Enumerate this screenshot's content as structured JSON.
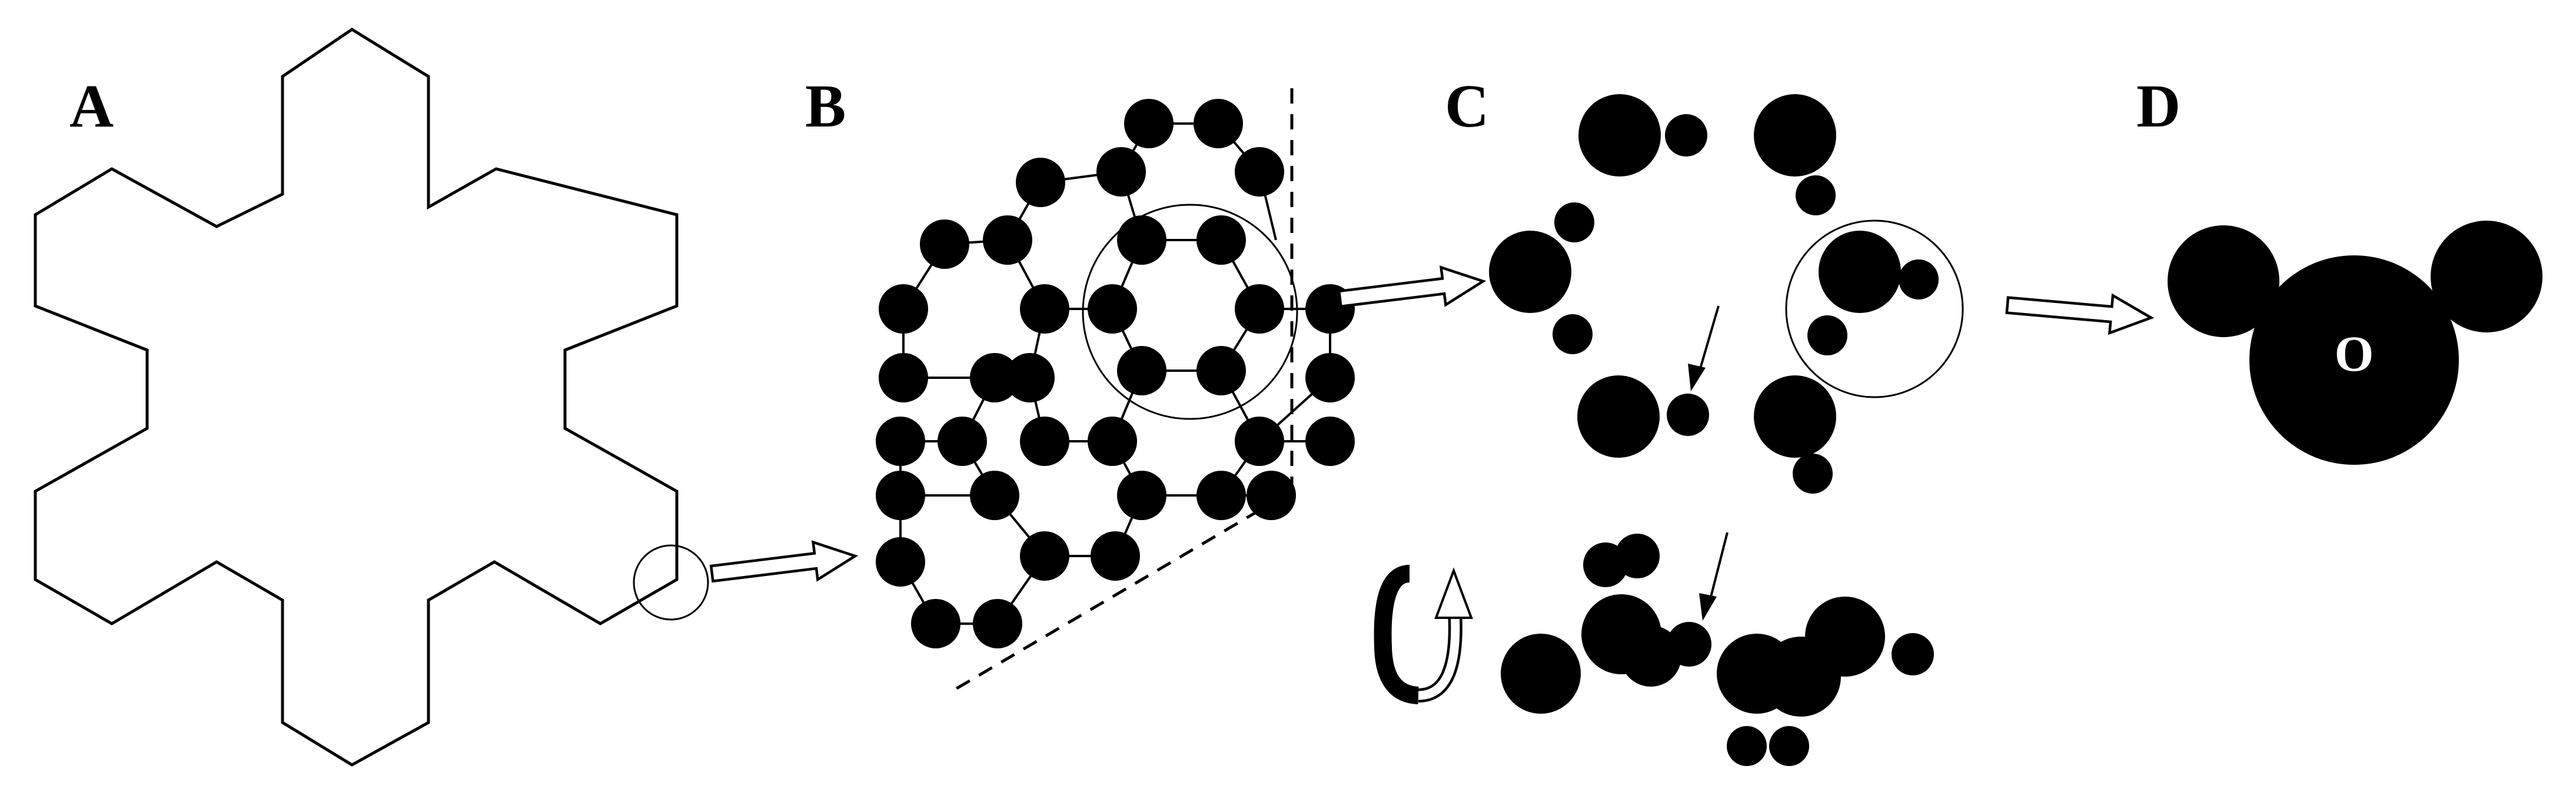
{
  "panels": {
    "a": "A",
    "b": "B",
    "c": "C",
    "d": "D"
  },
  "atom_label": "O",
  "colors": {
    "ink": "#000000",
    "paper": "#ffffff"
  }
}
